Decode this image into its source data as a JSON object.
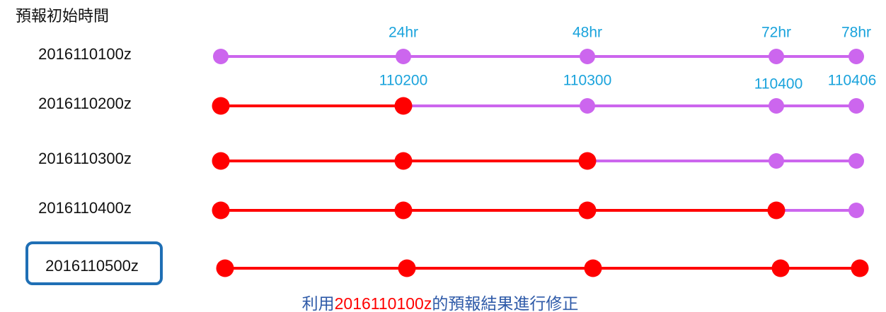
{
  "header": {
    "title": "預報初始時間"
  },
  "lead_labels": [
    "24hr",
    "48hr",
    "72hr",
    "78hr"
  ],
  "date_labels": [
    "110200",
    "110300",
    "110400",
    "110406"
  ],
  "rows": [
    {
      "label": "2016110100z"
    },
    {
      "label": "2016110200z"
    },
    {
      "label": "2016110300z"
    },
    {
      "label": "2016110400z"
    },
    {
      "label": "2016110500z"
    }
  ],
  "caption": {
    "before": "利用",
    "highlight": "2016110100z",
    "after": "的預報結果進行修正"
  }
}
